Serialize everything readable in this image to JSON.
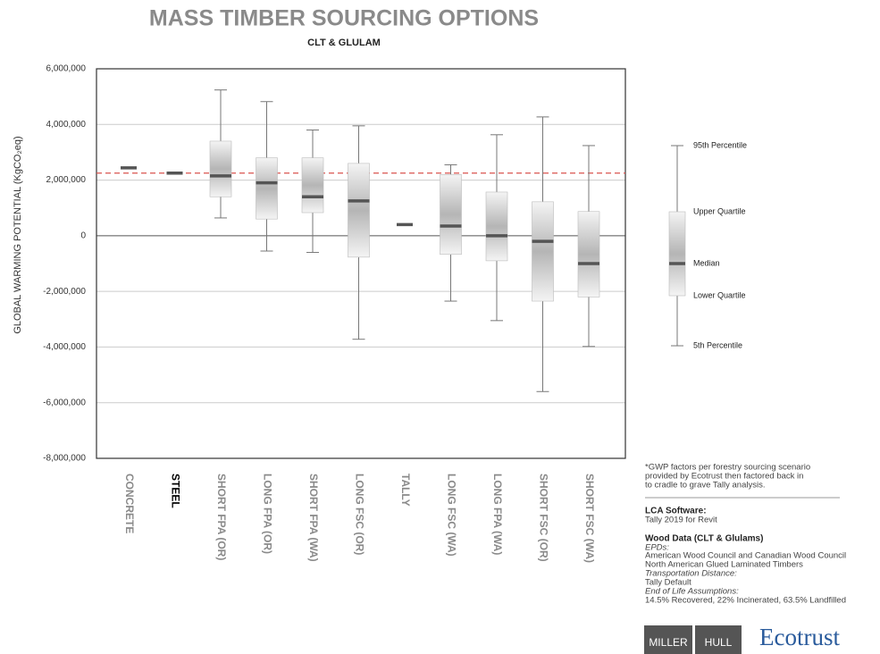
{
  "chart_data": {
    "type": "box",
    "title": "MASS TIMBER SOURCING OPTIONS",
    "subtitle": "CLT & GLULAM",
    "y_label": "GLOBAL WARMING POTENTIAL  (KgCO₂eq)",
    "categories": [
      "CONCRETE",
      "STEEL",
      "SHORT FPA (OR)",
      "LONG FPA (OR)",
      "SHORT FPA (WA)",
      "LONG FSC (OR)",
      "TALLY",
      "LONG FSC (WA)",
      "LONG FPA (WA)",
      "SHORT FSC (OR)",
      "SHORT FSC (WA)"
    ],
    "highlight": "STEEL",
    "boxes": {
      "high": [
        null,
        null,
        5240000,
        4820000,
        3800000,
        3950000,
        null,
        2550000,
        3630000,
        4270000,
        3240000
      ],
      "q3": [
        null,
        null,
        3400000,
        2800000,
        2800000,
        2600000,
        null,
        2200000,
        1570000,
        1220000,
        870000
      ],
      "median": [
        2440000,
        2250000,
        2150000,
        1900000,
        1400000,
        1250000,
        400000,
        350000,
        0,
        -200000,
        -1000000
      ],
      "q1": [
        null,
        null,
        1400000,
        600000,
        830000,
        -770000,
        null,
        -670000,
        -900000,
        -2350000,
        -2200000
      ],
      "low": [
        null,
        null,
        640000,
        -550000,
        -600000,
        -3720000,
        null,
        -2350000,
        -3050000,
        -5600000,
        -3980000
      ]
    },
    "reference_line": 2250000,
    "reference_color": "#d9534f",
    "box_color": "#b5b5b5",
    "median_color": "#555555",
    "ylim": [
      -8000000,
      6000000
    ],
    "yticks": [
      {
        "value": -8000000,
        "label": "-8,000,000"
      },
      {
        "value": -6000000,
        "label": "-6,000,000"
      },
      {
        "value": -4000000,
        "label": "-4,000,000"
      },
      {
        "value": -2000000,
        "label": "-2,000,000"
      },
      {
        "value": 0,
        "label": "0"
      },
      {
        "value": 2000000,
        "label": "2,000,000"
      },
      {
        "value": 4000000,
        "label": "4,000,000"
      },
      {
        "value": 6000000,
        "label": "6,000,000"
      }
    ],
    "grid": true,
    "legend": {
      "high": "95th Percentile",
      "q3": "Upper Quartile",
      "median": "Median",
      "q1": "Lower Quartile",
      "low": "5th Percentile"
    }
  },
  "notes": {
    "footnote": [
      "*GWP factors per forestry sourcing scenario",
      "provided by Ecotrust then factored back in",
      "to cradle to grave Tally analysis."
    ],
    "software_heading": "LCA Software:",
    "software": "Tally 2019 for Revit",
    "wood_heading": "Wood Data (CLT & Glulams)",
    "epds_heading": "EPDs:",
    "epds": [
      "American Wood Council and Canadian Wood Council",
      "North American Glued Laminated Timbers"
    ],
    "transport_heading": "Transportation Distance:",
    "transport": "Tally Default",
    "eol_heading": "End of Life Assumptions:",
    "eol": "14.5% Recovered, 22% Incinerated, 63.5% Landfilled"
  },
  "logos": {
    "left": "MILLER",
    "right": "HULL",
    "ecotrust": "Ecotrust"
  }
}
